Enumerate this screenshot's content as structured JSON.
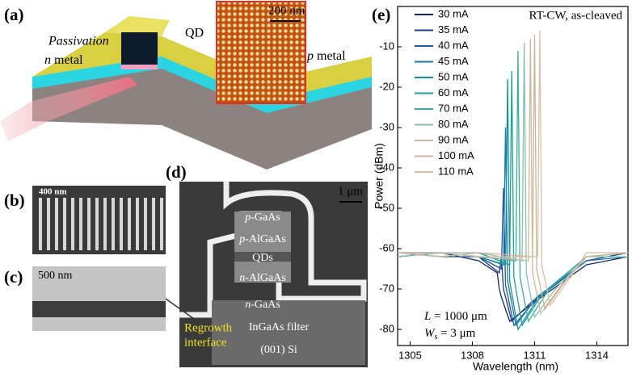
{
  "panels": {
    "a": {
      "label": "(a)",
      "passivation": "Passivation",
      "n_metal": {
        "italic": "n",
        "rest": " metal"
      },
      "p_metal": {
        "italic": "p",
        "rest": " metal"
      },
      "qd": "QD",
      "scale": "200 nm"
    },
    "b": {
      "label": "(b)",
      "scale": "400 nm"
    },
    "c": {
      "label": "(c)",
      "scale": "500 nm"
    },
    "d": {
      "label": "(d)",
      "scale": "1 μm",
      "layers": [
        {
          "italic": "p",
          "rest": "-GaAs"
        },
        {
          "italic": "p",
          "rest": "-AlGaAs"
        },
        {
          "italic": "",
          "rest": "QDs"
        },
        {
          "italic": "n",
          "rest": "-AlGaAs"
        },
        {
          "italic": "n",
          "rest": "-GaAs"
        },
        {
          "italic": "",
          "rest": "InGaAs filter"
        },
        {
          "italic": "",
          "rest": "(001) Si"
        }
      ],
      "regrowth": [
        "Regrowth",
        "interface"
      ]
    },
    "e": {
      "label": "(e)"
    }
  },
  "chart_data": {
    "type": "line",
    "xlabel": "Wavelength (nm)",
    "ylabel": "Power (dBm)",
    "annotation": "RT-CW, as-cleaved",
    "length_note": {
      "symbol": "L",
      "rest": " = 1000 μm"
    },
    "width_note": {
      "symbol": "W",
      "sub": "s",
      "rest": " = 3 μm"
    },
    "xlim": [
      1304.4,
      1315.5
    ],
    "ylim": [
      -84,
      0
    ],
    "xticks": [
      1305,
      1308,
      1311,
      1314
    ],
    "yticks": [
      -80,
      -70,
      -60,
      -50,
      -40,
      -30,
      -20,
      -10
    ],
    "series": [
      {
        "name": "30 mA",
        "color": "#16256b",
        "x": [
          1304.4,
          1306.5,
          1308.3,
          1309.2,
          1309.3,
          1309.4,
          1309.8,
          1310.8,
          1313.5,
          1315.5
        ],
        "values": [
          -62,
          -61,
          -63,
          -66,
          -70,
          -72,
          -78,
          -74,
          -64,
          -62
        ]
      },
      {
        "name": "35 mA",
        "color": "#1d3a8c",
        "x": [
          1304.4,
          1306.5,
          1308.3,
          1309.3,
          1309.4,
          1309.5,
          1309.9,
          1310.9,
          1313.5,
          1315.5
        ],
        "values": [
          -61,
          -61,
          -62,
          -66,
          -62,
          -70,
          -78,
          -73,
          -63,
          -61
        ]
      },
      {
        "name": "40 mA",
        "color": "#1c589e",
        "x": [
          1304.4,
          1306.5,
          1308.3,
          1309.4,
          1309.5,
          1309.6,
          1310.0,
          1311.0,
          1313.5,
          1315.5
        ],
        "values": [
          -61,
          -62,
          -62,
          -65,
          -45,
          -69,
          -79,
          -73,
          -63,
          -61
        ]
      },
      {
        "name": "45 mA",
        "color": "#1a75a8",
        "x": [
          1304.4,
          1306.5,
          1308.3,
          1309.5,
          1309.6,
          1309.7,
          1310.1,
          1311.1,
          1313.5,
          1315.5
        ],
        "values": [
          -61,
          -61,
          -62,
          -64,
          -30,
          -68,
          -79,
          -72,
          -63,
          -62
        ]
      },
      {
        "name": "50 mA",
        "color": "#12919f",
        "x": [
          1304.4,
          1306.5,
          1308.3,
          1309.6,
          1309.7,
          1309.8,
          1310.2,
          1311.2,
          1313.5,
          1315.5
        ],
        "values": [
          -62,
          -61,
          -62,
          -64,
          -18,
          -68,
          -80,
          -72,
          -62,
          -61
        ]
      },
      {
        "name": "60 mA",
        "color": "#17a498",
        "x": [
          1304.4,
          1306.5,
          1308.3,
          1309.8,
          1309.9,
          1310.0,
          1310.4,
          1311.4,
          1313.5,
          1315.5
        ],
        "values": [
          -61,
          -62,
          -61,
          -64,
          -16,
          -67,
          -79,
          -71,
          -62,
          -61
        ]
      },
      {
        "name": "70 mA",
        "color": "#36ae9e",
        "x": [
          1304.4,
          1306.5,
          1308.3,
          1310.1,
          1310.2,
          1310.3,
          1310.7,
          1311.7,
          1313.5,
          1315.5
        ],
        "values": [
          -61,
          -61,
          -62,
          -63,
          -11,
          -67,
          -78,
          -70,
          -62,
          -61
        ]
      },
      {
        "name": "80 mA",
        "color": "#86c1b0",
        "x": [
          1304.4,
          1306.5,
          1308.3,
          1310.4,
          1310.5,
          1310.6,
          1311.0,
          1312.0,
          1313.5,
          1315.5
        ],
        "values": [
          -62,
          -61,
          -61,
          -63,
          -9,
          -66,
          -77,
          -70,
          -62,
          -62
        ]
      },
      {
        "name": "90 mA",
        "color": "#c9b9a4",
        "x": [
          1304.4,
          1306.5,
          1308.3,
          1310.7,
          1310.8,
          1310.9,
          1311.3,
          1312.3,
          1313.5,
          1315.5
        ],
        "values": [
          -61,
          -61,
          -62,
          -63,
          -8,
          -66,
          -76,
          -69,
          -62,
          -61
        ]
      },
      {
        "name": "100 mA",
        "color": "#d4b295",
        "x": [
          1304.4,
          1306.5,
          1308.3,
          1310.9,
          1311.0,
          1311.1,
          1311.5,
          1312.5,
          1313.5,
          1315.5
        ],
        "values": [
          -61,
          -62,
          -61,
          -62,
          -7,
          -65,
          -75,
          -68,
          -62,
          -61
        ]
      },
      {
        "name": "110 mA",
        "color": "#dbbfa5",
        "x": [
          1304.4,
          1306.5,
          1308.3,
          1311.15,
          1311.25,
          1311.35,
          1311.75,
          1312.75,
          1313.5,
          1315.5
        ],
        "values": [
          -61,
          -61,
          -62,
          -62,
          -6,
          -64,
          -74,
          -67,
          -61,
          -61
        ]
      }
    ]
  }
}
